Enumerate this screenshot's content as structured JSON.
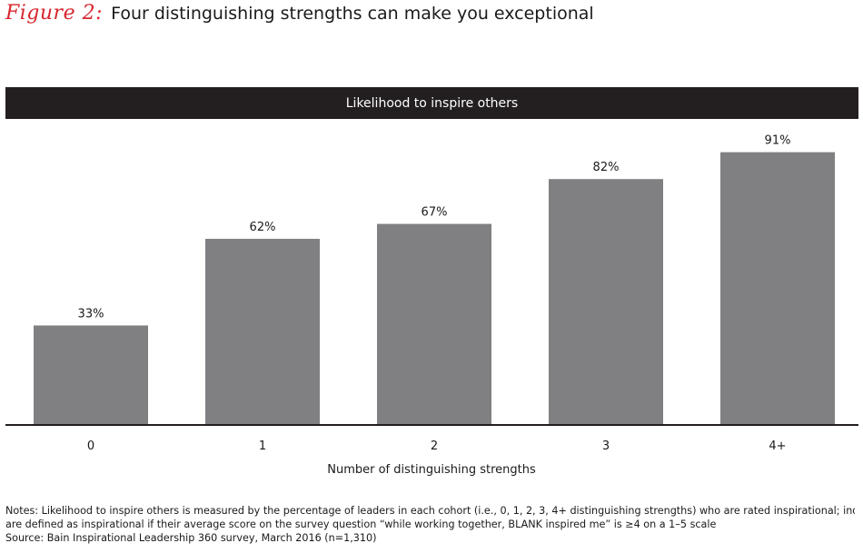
{
  "figure": {
    "label": "Figure 2:",
    "title": "Four distinguishing strengths can make you exceptional"
  },
  "notes": {
    "line1": "Notes: Likelihood to inspire others is measured by the percentage of leaders in each cohort (i.e., 0, 1, 2, 3, 4+ distinguishing strengths) who are rated inspirational; individuals",
    "line2": "are defined as inspirational if their average score on the survey question “while working together, BLANK inspired me” is ≥4 on a 1–5 scale",
    "line3": "Source: Bain Inspirational Leadership 360 survey, March 2016 (n=1,310)"
  },
  "chart_data": {
    "type": "bar",
    "title": "Likelihood to inspire others",
    "xlabel": "Number of distinguishing strengths",
    "ylabel": "",
    "categories": [
      "0",
      "1",
      "2",
      "3",
      "4+"
    ],
    "values": [
      33,
      62,
      67,
      82,
      91
    ],
    "data_labels": [
      "33%",
      "62%",
      "67%",
      "82%",
      "91%"
    ],
    "unit": "%",
    "ylim": [
      0,
      100
    ],
    "grid": false,
    "legend": "none",
    "bar_color": "#808083",
    "axis_color": "#231f20",
    "banner_color": "#231f20"
  }
}
